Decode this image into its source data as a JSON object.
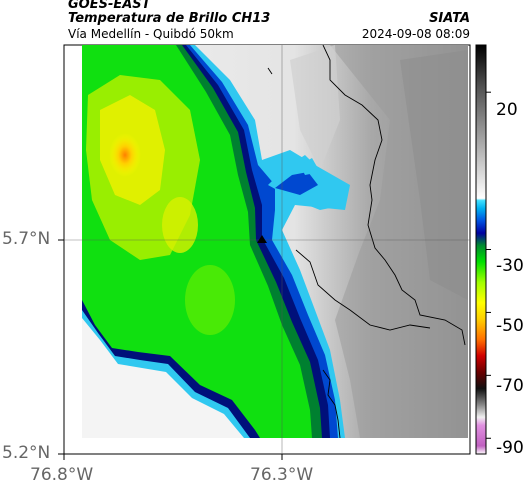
{
  "header": {
    "product": "GOES-EAST",
    "product_title": "Temperatura de Brillo CH13",
    "region": "Vía Medellín - Quibdó 50km",
    "agency": "SIATA",
    "timestamp": "2024-09-08 08:09"
  },
  "axes": {
    "lat_ticks": [
      {
        "label": "5.7°N",
        "value": 5.7
      },
      {
        "label": "5.2°N",
        "value": 5.2
      }
    ],
    "lon_ticks": [
      {
        "label": "76.8°W",
        "value": -76.8
      },
      {
        "label": "76.3°W",
        "value": -76.3
      }
    ]
  },
  "colorbar": {
    "ticks": [
      {
        "label": "20",
        "value": 20
      },
      {
        "label": "-30",
        "value": -30
      },
      {
        "label": "-50",
        "value": -50
      },
      {
        "label": "-70",
        "value": -70
      },
      {
        "label": "-90",
        "value": -90
      }
    ],
    "range": [
      -95,
      35
    ]
  },
  "markers": [
    {
      "name": "site-marker",
      "symbol": "triangle",
      "lon": -76.35,
      "lat": 5.7
    }
  ]
}
